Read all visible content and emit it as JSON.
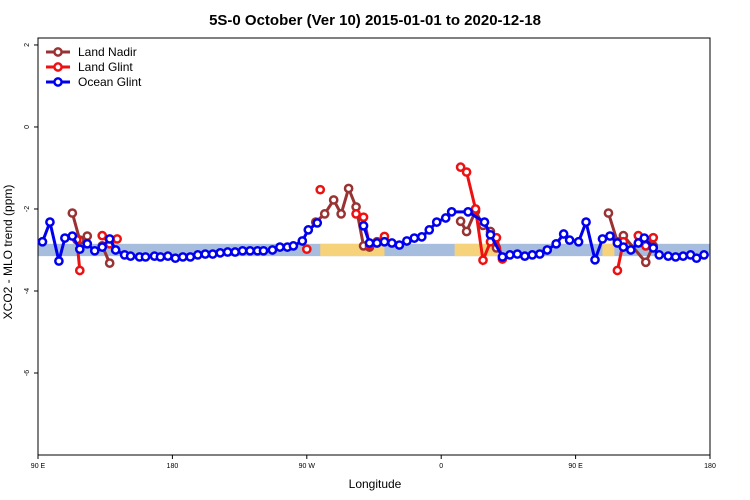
{
  "chart_data": {
    "type": "line",
    "title": "5S-0 October (Ver 10)   2015-01-01 to 2020-12-18",
    "xlabel": "Longitude",
    "ylabel": "XCO2 - MLO trend (ppm)",
    "xlim": [
      90,
      540
    ],
    "ylim": [
      -8,
      2.17
    ],
    "xticks": [
      {
        "value": 90,
        "label": "90 E"
      },
      180,
      {
        "value": 270,
        "label": "90 W"
      },
      {
        "value": 360,
        "label": "0"
      },
      {
        "value": 450,
        "label": "90 E"
      },
      {
        "value": 540,
        "label": "180"
      }
    ],
    "yticks": [
      2,
      0,
      -2,
      -4,
      -6
    ],
    "legend": "top-left",
    "bands": [
      {
        "xlim": [
          90,
          540
        ],
        "ylim": [
          -3.15,
          -2.85
        ],
        "color": "#a7bddd"
      },
      {
        "xlim": [
          279,
          322
        ],
        "ylim": [
          -3.15,
          -2.85
        ],
        "color": "#f6d37b"
      },
      {
        "xlim": [
          369,
          399
        ],
        "ylim": [
          -3.15,
          -2.85
        ],
        "color": "#f6d37b"
      },
      {
        "xlim": [
          468,
          476
        ],
        "ylim": [
          -3.15,
          -2.85
        ],
        "color": "#f6d37b"
      }
    ],
    "series": [
      {
        "name": "Land Nadir",
        "color": "#993333",
        "x": [
          113,
          118,
          123,
          126,
          133,
          138,
          200,
          276,
          282,
          288,
          293,
          298,
          303,
          308,
          312,
          317,
          322,
          340,
          373,
          377,
          383,
          388,
          393,
          397,
          420,
          472,
          478,
          482,
          497,
          502
        ],
        "values": [
          -2.1,
          -2.76,
          -2.66,
          null,
          -2.9,
          -3.32,
          null,
          -2.32,
          -2.12,
          -1.78,
          -2.12,
          -1.5,
          -1.95,
          -2.9,
          -2.93,
          -2.8,
          -2.78,
          null,
          -2.3,
          -2.55,
          -2.05,
          -2.4,
          -2.55,
          -2.95,
          null,
          -2.1,
          -2.8,
          -2.65,
          -3.3,
          -2.9
        ]
      },
      {
        "name": "Land Glint",
        "color": "#ee1111",
        "x": [
          116,
          118,
          120,
          133,
          138,
          143,
          200,
          270,
          272,
          279,
          290,
          303,
          308,
          312,
          322,
          350,
          373,
          377,
          383,
          388,
          393,
          397,
          401,
          440,
          478,
          482,
          485,
          492,
          497,
          502
        ],
        "values": [
          -2.75,
          -3.5,
          null,
          -2.65,
          -2.85,
          -2.73,
          null,
          -2.98,
          null,
          -1.53,
          null,
          -2.12,
          -2.2,
          -2.88,
          -2.67,
          null,
          -0.98,
          -1.1,
          -2.0,
          -3.25,
          -2.8,
          -2.7,
          -3.22,
          null,
          -3.5,
          -2.8,
          null,
          -2.65,
          -2.9,
          -2.7
        ]
      },
      {
        "name": "Ocean Glint",
        "color": "#0000ee",
        "x": [
          93,
          98,
          104,
          108,
          113,
          118,
          123,
          128,
          133,
          138,
          142,
          148,
          152,
          158,
          162,
          168,
          172,
          177,
          182,
          187,
          192,
          197,
          202,
          207,
          212,
          217,
          222,
          227,
          232,
          237,
          241,
          247,
          252,
          257,
          261,
          267,
          271,
          277,
          300,
          308,
          312,
          317,
          322,
          327,
          332,
          337,
          342,
          347,
          352,
          357,
          363,
          367,
          378,
          389,
          393,
          401,
          406,
          411,
          416,
          421,
          426,
          431,
          437,
          442,
          446,
          452,
          457,
          463,
          468,
          473,
          478,
          482,
          487,
          492,
          496,
          502,
          506,
          512,
          517,
          522,
          527,
          531,
          536
        ],
        "values": [
          -2.8,
          -2.32,
          -3.27,
          -2.71,
          -2.66,
          -2.98,
          -2.85,
          -3.02,
          -2.93,
          -2.73,
          -3.0,
          -3.12,
          -3.15,
          -3.17,
          -3.17,
          -3.15,
          -3.17,
          -3.15,
          -3.2,
          -3.17,
          -3.17,
          -3.12,
          -3.1,
          -3.1,
          -3.07,
          -3.05,
          -3.05,
          -3.02,
          -3.02,
          -3.02,
          -3.02,
          -3.0,
          -2.93,
          -2.93,
          -2.9,
          -2.78,
          -2.51,
          -2.34,
          null,
          -2.41,
          -2.83,
          -2.83,
          -2.8,
          -2.83,
          -2.88,
          -2.78,
          -2.71,
          -2.68,
          -2.51,
          -2.32,
          -2.22,
          -2.07,
          -2.07,
          -2.32,
          -2.63,
          -3.17,
          -3.12,
          -3.1,
          -3.15,
          -3.12,
          -3.1,
          -3.0,
          -2.85,
          -2.61,
          -2.76,
          -2.8,
          -2.32,
          -3.24,
          -2.73,
          -2.66,
          -2.83,
          -2.93,
          -3.0,
          -2.83,
          -2.71,
          -2.95,
          -3.12,
          -3.15,
          -3.17,
          -3.15,
          -3.12,
          -3.2,
          -3.12
        ]
      }
    ]
  }
}
